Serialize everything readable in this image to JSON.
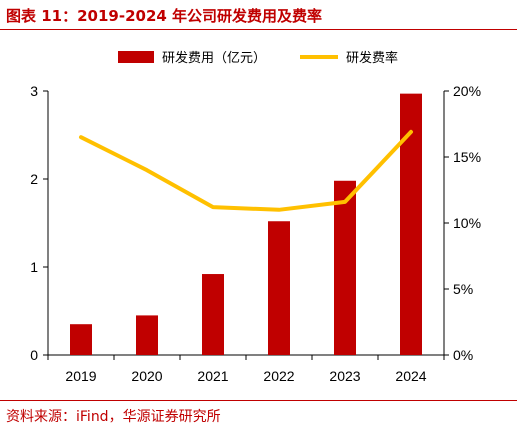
{
  "header": {
    "title": "图表 11：2019-2024 年公司研发费用及费率"
  },
  "footer": {
    "source": "资料来源：iFind，华源证券研究所"
  },
  "colors": {
    "accent": "#c00000",
    "bar": "#c00000",
    "line": "#ffc000",
    "axis": "#000000"
  },
  "chart_data": {
    "type": "bar",
    "categories": [
      "2019",
      "2020",
      "2021",
      "2022",
      "2023",
      "2024"
    ],
    "series": [
      {
        "name": "研发费用（亿元）",
        "kind": "bar",
        "axis": "left",
        "values": [
          0.35,
          0.45,
          0.92,
          1.52,
          1.98,
          2.97
        ]
      },
      {
        "name": "研发费率",
        "kind": "line",
        "axis": "right",
        "values": [
          16.5,
          14.0,
          11.2,
          11.0,
          11.6,
          16.9
        ]
      }
    ],
    "y_left": {
      "lim": [
        0,
        3
      ],
      "ticks": [
        "0",
        "1",
        "2",
        "3"
      ]
    },
    "y_right": {
      "lim": [
        0,
        20
      ],
      "ticks": [
        "0%",
        "5%",
        "10%",
        "15%",
        "20%"
      ]
    },
    "grid": false,
    "legend_position": "top"
  }
}
